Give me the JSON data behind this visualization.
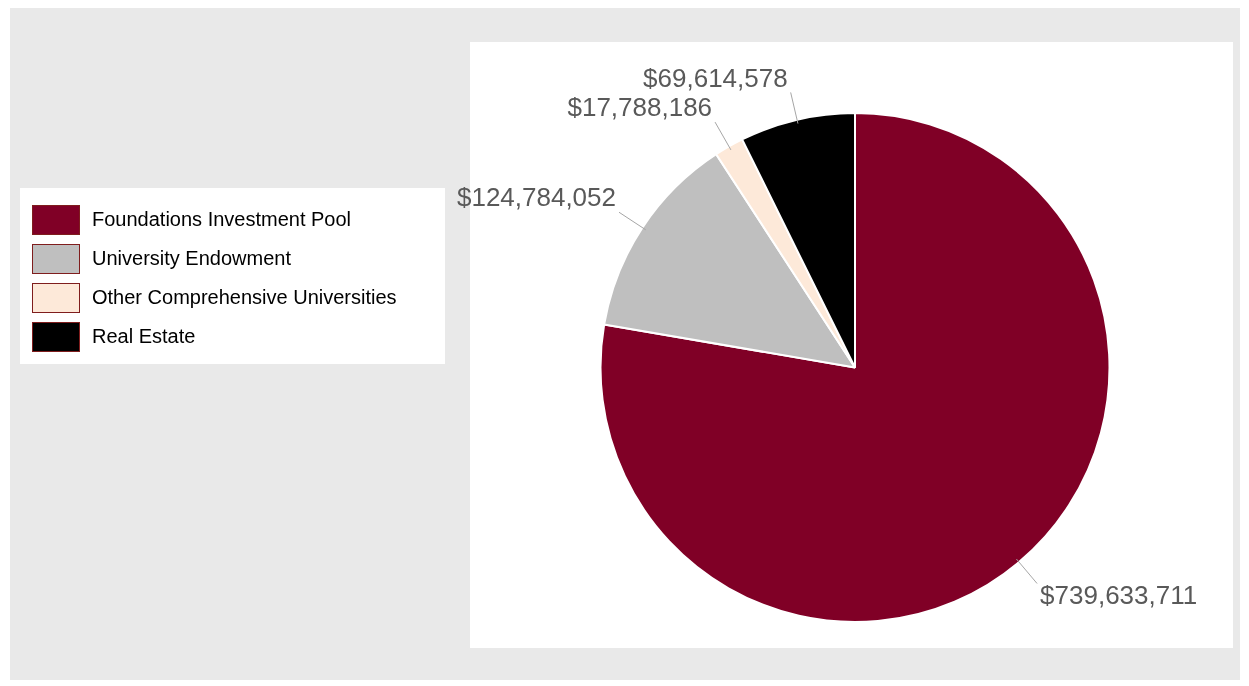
{
  "chart_data": {
    "type": "pie",
    "categories": [
      "Foundations Investment Pool",
      "University Endowment",
      "Other Comprehensive Universities",
      "Real Estate"
    ],
    "values": [
      739633711,
      124784052,
      17788186,
      69614578
    ],
    "colors": [
      "#800026",
      "#bfbfbf",
      "#fde9d9",
      "#000000"
    ],
    "value_labels": [
      "$739,633,711",
      "$124,784,052",
      "$17,788,186",
      "$69,614,578"
    ],
    "legend": "left"
  }
}
